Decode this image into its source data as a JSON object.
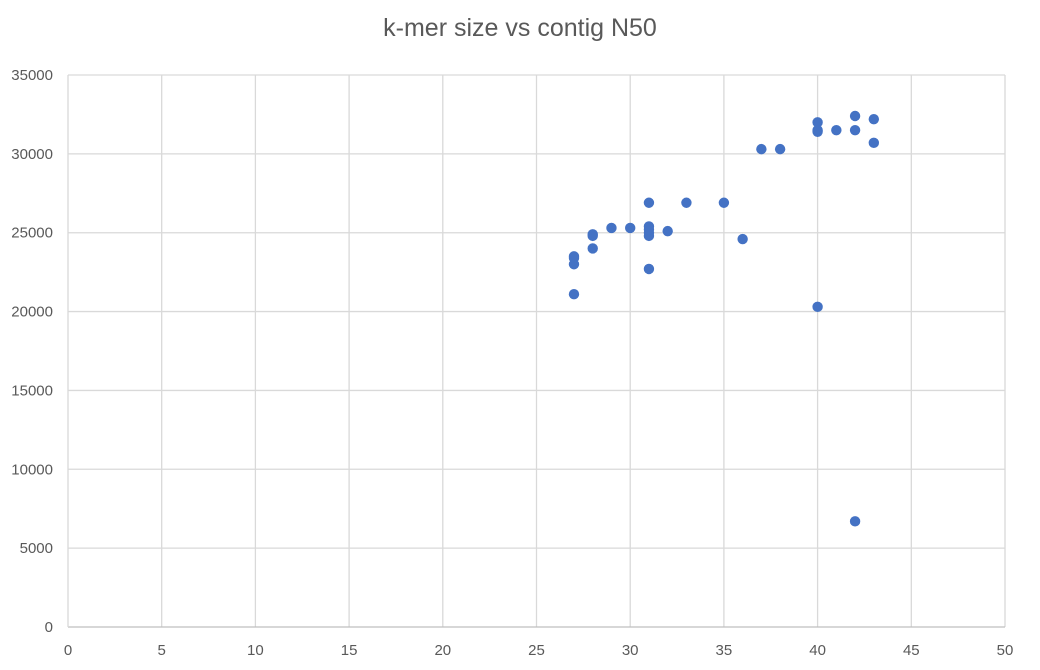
{
  "chart_data": {
    "type": "scatter",
    "title": "k-mer size vs contig N50",
    "xlabel": "",
    "ylabel": "",
    "xlim": [
      0,
      50
    ],
    "ylim": [
      0,
      35000
    ],
    "x_ticks": [
      0,
      5,
      10,
      15,
      20,
      25,
      30,
      35,
      40,
      45,
      50
    ],
    "y_ticks": [
      0,
      5000,
      10000,
      15000,
      20000,
      25000,
      30000,
      35000
    ],
    "grid": true,
    "legend": "none",
    "colors": {
      "marker": "#4472C4",
      "grid": "#D9D9D9",
      "text": "#595959"
    },
    "series": [
      {
        "points": [
          {
            "x": 27,
            "y": 21100
          },
          {
            "x": 27,
            "y": 23000
          },
          {
            "x": 27,
            "y": 23400
          },
          {
            "x": 27,
            "y": 23500
          },
          {
            "x": 28,
            "y": 24000
          },
          {
            "x": 28,
            "y": 24800
          },
          {
            "x": 28,
            "y": 24900
          },
          {
            "x": 29,
            "y": 25300
          },
          {
            "x": 30,
            "y": 25300
          },
          {
            "x": 31,
            "y": 22700
          },
          {
            "x": 31,
            "y": 24800
          },
          {
            "x": 31,
            "y": 25000
          },
          {
            "x": 31,
            "y": 25200
          },
          {
            "x": 31,
            "y": 25400
          },
          {
            "x": 31,
            "y": 26900
          },
          {
            "x": 32,
            "y": 25100
          },
          {
            "x": 33,
            "y": 26900
          },
          {
            "x": 35,
            "y": 26900
          },
          {
            "x": 36,
            "y": 24600
          },
          {
            "x": 37,
            "y": 30300
          },
          {
            "x": 38,
            "y": 30300
          },
          {
            "x": 40,
            "y": 20300
          },
          {
            "x": 40,
            "y": 31400
          },
          {
            "x": 40,
            "y": 31500
          },
          {
            "x": 40,
            "y": 32000
          },
          {
            "x": 41,
            "y": 31500
          },
          {
            "x": 42,
            "y": 6700
          },
          {
            "x": 42,
            "y": 31500
          },
          {
            "x": 42,
            "y": 32400
          },
          {
            "x": 43,
            "y": 30700
          },
          {
            "x": 43,
            "y": 32200
          }
        ]
      }
    ]
  }
}
